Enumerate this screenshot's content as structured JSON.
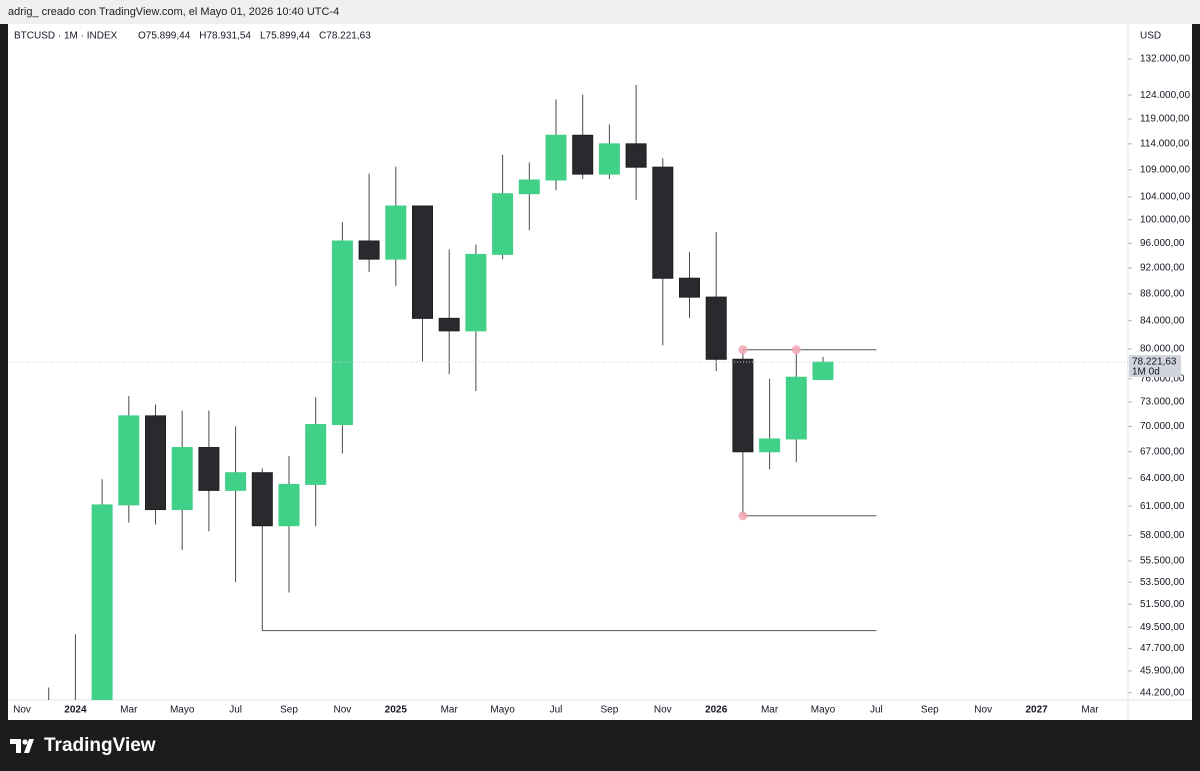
{
  "top_bar": "adrig_ creado con TradingView.com, el Mayo 01, 2026 10:40 UTC-4",
  "footer": "TradingView",
  "chart_data": {
    "type": "candlestick",
    "title": "BTCUSD · 1M · INDEX",
    "ohlc_header": [
      "O75.899,44",
      "H78.931,54",
      "L75.899,44",
      "C78.221,63"
    ],
    "currency": "USD",
    "x": [
      "2023-12",
      "2024-01",
      "2024-02",
      "2024-03",
      "2024-04",
      "2024-05",
      "2024-06",
      "2024-07",
      "2024-08",
      "2024-09",
      "2024-10",
      "2024-11",
      "2024-12",
      "2025-01",
      "2025-02",
      "2025-03",
      "2025-04",
      "2025-05",
      "2025-06",
      "2025-07",
      "2025-08",
      "2025-09",
      "2025-10",
      "2025-11",
      "2025-12",
      "2026-01",
      "2026-02",
      "2026-03",
      "2026-04",
      "2026-05"
    ],
    "open": [
      37700,
      42280,
      42580,
      61130,
      71280,
      60640,
      67490,
      62680,
      64620,
      58970,
      63330,
      70220,
      96400,
      93430,
      102400,
      84350,
      82550,
      94200,
      104600,
      107100,
      115700,
      108200,
      114000,
      109500,
      90400,
      87500,
      78600,
      67000,
      68500,
      75899.44
    ],
    "high": [
      44600,
      48900,
      63900,
      73750,
      72700,
      71950,
      71950,
      70000,
      65100,
      66500,
      73600,
      99600,
      108300,
      109600,
      102500,
      95000,
      95800,
      111900,
      110400,
      123100,
      124100,
      117900,
      126200,
      111200,
      94600,
      97900,
      79800,
      76000,
      79500,
      78931.54
    ],
    "low": [
      37600,
      38500,
      41880,
      59300,
      59100,
      56550,
      58400,
      53500,
      49200,
      52550,
      58900,
      66800,
      91400,
      89200,
      78200,
      76600,
      74400,
      93400,
      98200,
      105200,
      107300,
      107300,
      103500,
      80500,
      84400,
      77000,
      60000,
      65000,
      65800,
      75899.44
    ],
    "close": [
      42280,
      42580,
      61130,
      71280,
      60640,
      67490,
      62680,
      64620,
      58970,
      63330,
      70220,
      96400,
      93430,
      102400,
      84350,
      82550,
      94200,
      104600,
      107100,
      115700,
      108200,
      114000,
      109500,
      90400,
      87500,
      78600,
      67000,
      68500,
      76200,
      78221.63
    ],
    "up_color": "#40d088",
    "down_color": "#2a2a2e",
    "xlim": [
      "2023-11",
      "2027-03"
    ],
    "xticks": [
      {
        "value": "2023-11",
        "label": "Nov"
      },
      {
        "value": "2024-01",
        "label": "2024"
      },
      {
        "value": "2024-03",
        "label": "Mar"
      },
      {
        "value": "2024-05",
        "label": "Mayo"
      },
      {
        "value": "2024-07",
        "label": "Jul"
      },
      {
        "value": "2024-09",
        "label": "Sep"
      },
      {
        "value": "2024-11",
        "label": "Nov"
      },
      {
        "value": "2025-01",
        "label": "2025"
      },
      {
        "value": "2025-03",
        "label": "Mar"
      },
      {
        "value": "2025-05",
        "label": "Mayo"
      },
      {
        "value": "2025-07",
        "label": "Jul"
      },
      {
        "value": "2025-09",
        "label": "Sep"
      },
      {
        "value": "2025-11",
        "label": "Nov"
      },
      {
        "value": "2026-01",
        "label": "2026"
      },
      {
        "value": "2026-03",
        "label": "Mar"
      },
      {
        "value": "2026-05",
        "label": "Mayo"
      },
      {
        "value": "2026-07",
        "label": "Jul"
      },
      {
        "value": "2026-09",
        "label": "Sep"
      },
      {
        "value": "2026-11",
        "label": "Nov"
      },
      {
        "value": "2027-01",
        "label": "2027"
      },
      {
        "value": "2027-03",
        "label": "Mar"
      }
    ],
    "log_scale": true,
    "ylim": [
      43650,
      140200
    ],
    "yticks": [
      {
        "value": 132000,
        "label": "132.000,00"
      },
      {
        "value": 124000,
        "label": "124.000,00"
      },
      {
        "value": 119000,
        "label": "119.000,00"
      },
      {
        "value": 114000,
        "label": "114.000,00"
      },
      {
        "value": 109000,
        "label": "109.000,00"
      },
      {
        "value": 104000,
        "label": "104.000,00"
      },
      {
        "value": 100000,
        "label": "100.000,00"
      },
      {
        "value": 96000,
        "label": "96.000,00"
      },
      {
        "value": 92000,
        "label": "92.000,00"
      },
      {
        "value": 88000,
        "label": "88.000,00"
      },
      {
        "value": 84000,
        "label": "84.000,00"
      },
      {
        "value": 80000,
        "label": "80.000,00"
      },
      {
        "value": 76000,
        "label": "76.000,00"
      },
      {
        "value": 73000,
        "label": "73.000,00"
      },
      {
        "value": 70000,
        "label": "70.000,00"
      },
      {
        "value": 67000,
        "label": "67.000,00"
      },
      {
        "value": 64000,
        "label": "64.000,00"
      },
      {
        "value": 61000,
        "label": "61.000,00"
      },
      {
        "value": 58000,
        "label": "58.000,00"
      },
      {
        "value": 55500,
        "label": "55.500,00"
      },
      {
        "value": 53500,
        "label": "53.500,00"
      },
      {
        "value": 51500,
        "label": "51.500,00"
      },
      {
        "value": 49500,
        "label": "49.500,00"
      },
      {
        "value": 47700,
        "label": "47.700,00"
      },
      {
        "value": 45900,
        "label": "45.900,00"
      },
      {
        "value": 44200,
        "label": "44.200,00"
      }
    ],
    "last_price": {
      "value": 78221.63,
      "label": "78.221,63"
    },
    "countdown": "1M 0d",
    "horizontal_lines": [
      {
        "value": 79900,
        "from": "2026-02",
        "to": "2026-07",
        "dots": [
          "2026-02",
          "2026-04"
        ]
      },
      {
        "value": 60000,
        "from": "2026-02",
        "to": "2026-07",
        "dots": [
          "2026-02"
        ]
      },
      {
        "value": 49200,
        "from": "2024-08",
        "to": "2026-07",
        "dots": []
      }
    ]
  }
}
